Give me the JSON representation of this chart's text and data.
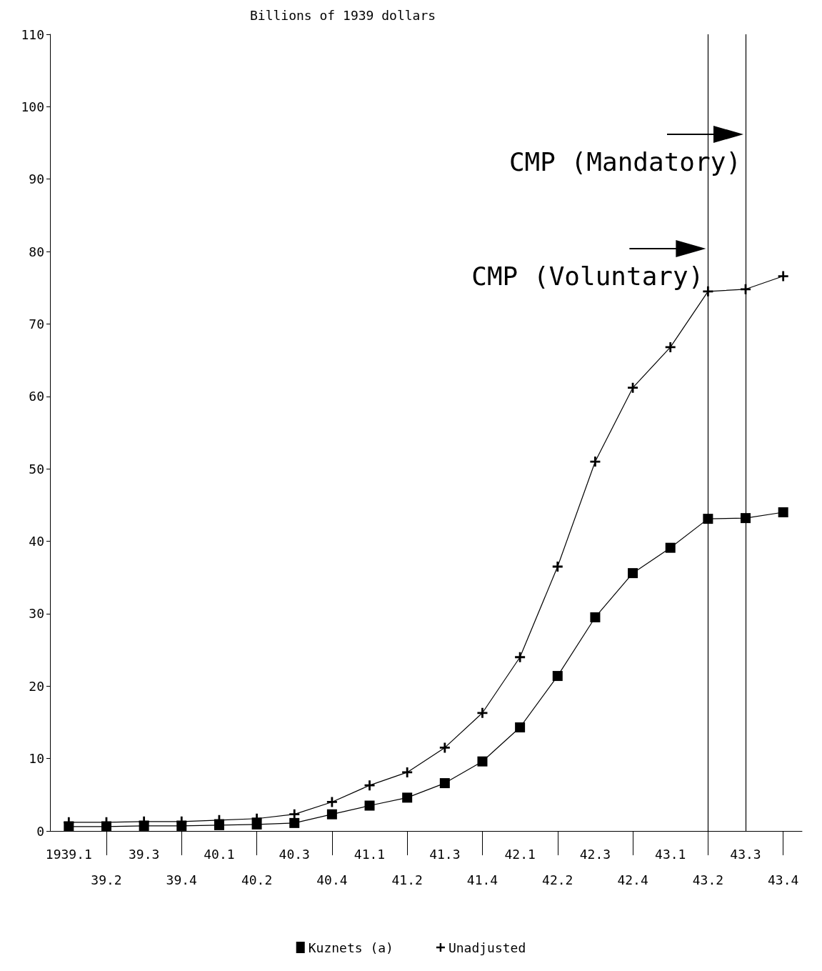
{
  "chart_data": {
    "type": "line",
    "ylabel": "Billions of 1939 dollars",
    "categories": [
      "1939.1",
      "39.2",
      "39.3",
      "39.4",
      "40.1",
      "40.2",
      "40.3",
      "40.4",
      "41.1",
      "41.2",
      "41.3",
      "41.4",
      "42.1",
      "42.2",
      "42.3",
      "42.4",
      "43.1",
      "43.2",
      "43.3",
      "43.4"
    ],
    "series": [
      {
        "name": "Kuznets (a)",
        "color": "#000000",
        "marker": "square",
        "values": [
          0.6,
          0.6,
          0.7,
          0.7,
          0.8,
          0.9,
          1.1,
          2.3,
          3.5,
          4.6,
          6.6,
          9.6,
          14.3,
          21.4,
          29.5,
          35.6,
          39.1,
          43.1,
          43.2,
          44.0
        ]
      },
      {
        "name": "Unadjusted",
        "color": "#000000",
        "marker": "cross",
        "values": [
          1.2,
          1.2,
          1.3,
          1.3,
          1.5,
          1.7,
          2.3,
          4.0,
          6.3,
          8.1,
          11.5,
          16.3,
          24.0,
          36.5,
          51.0,
          61.2,
          66.8,
          74.5,
          74.8,
          76.6
        ]
      }
    ],
    "ref_lines": [
      {
        "axis": "x",
        "value": "43.2",
        "label": "CMP (Voluntary)"
      },
      {
        "axis": "x",
        "value": "43.3",
        "label": "CMP (Mandatory)"
      }
    ],
    "ylim": [
      0,
      110
    ],
    "yticks": [
      0,
      10,
      20,
      30,
      40,
      50,
      60,
      70,
      80,
      90,
      100,
      110
    ],
    "grid": false,
    "legend": "bottom",
    "line_style": "solid"
  }
}
